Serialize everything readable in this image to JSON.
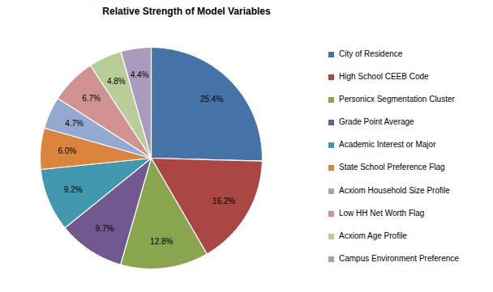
{
  "chart_data": {
    "type": "pie",
    "title": "Relative Strength of Model Variables",
    "categories": [
      "City of Residence",
      "High School CEEB Code",
      "Personicx Segmentation Cluster",
      "Grade Point Average",
      "Academic Interest or Major",
      "State School Preference Flag",
      "Acxiom Household Size Profile",
      "Low HH Net Worth Flag",
      "Acxiom Age Profile",
      "Campus Environment Preference"
    ],
    "values": [
      25.4,
      16.2,
      12.8,
      9.7,
      9.2,
      6.0,
      4.7,
      6.7,
      4.8,
      4.4
    ],
    "value_labels": [
      "25.4%",
      "16.2%",
      "12.8%",
      "9.7%",
      "9.2%",
      "6.0%",
      "4.7%",
      "6.7%",
      "4.8%",
      "4.4%"
    ],
    "colors": [
      "#4572A7",
      "#AA4643",
      "#89A54E",
      "#71588F",
      "#4198AF",
      "#DB843D",
      "#93A9CF",
      "#D19392",
      "#B9CD96",
      "#A99BBD"
    ],
    "data_labels": true,
    "legend": "right"
  }
}
